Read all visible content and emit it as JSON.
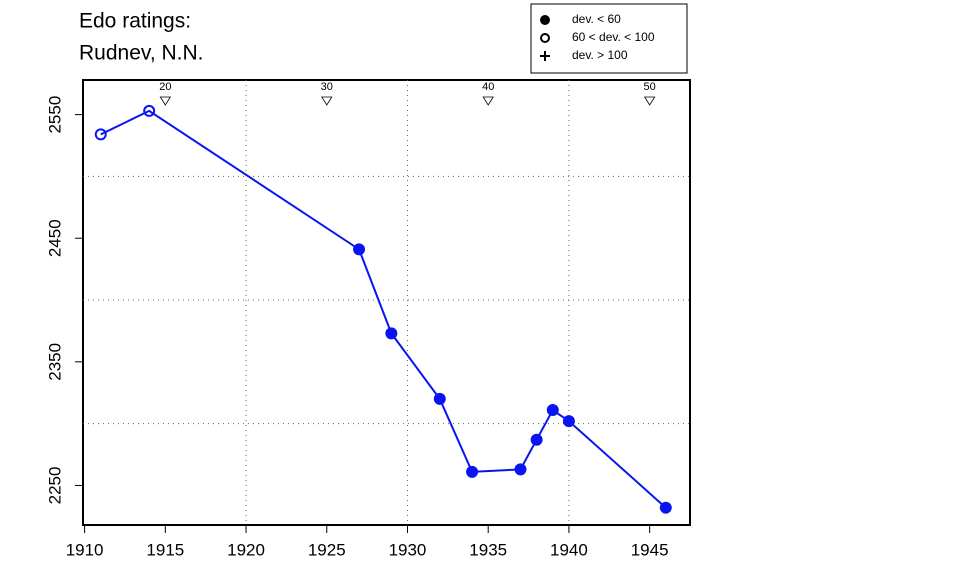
{
  "chart_data": {
    "type": "line",
    "title": "Edo ratings:",
    "subtitle": "Rudnev, N.N.",
    "color": "#0a14f0",
    "x": [
      1911,
      1914,
      1927,
      1929,
      1932,
      1934,
      1937,
      1938,
      1939,
      1940,
      1946
    ],
    "values": [
      2534,
      2553,
      2441,
      2373,
      2320,
      2261,
      2263,
      2287,
      2311,
      2302,
      2232
    ],
    "markers": [
      "open",
      "open",
      "filled",
      "filled",
      "filled",
      "filled",
      "filled",
      "filled",
      "filled",
      "filled",
      "filled"
    ],
    "xlim": [
      1909.9,
      1947.5
    ],
    "ylim": [
      2218,
      2578
    ],
    "xticks": [
      1910,
      1915,
      1920,
      1925,
      1930,
      1935,
      1940,
      1945
    ],
    "yticks": [
      2250,
      2350,
      2450,
      2550
    ],
    "xgrid": [
      1920,
      1930,
      1940
    ],
    "ygrid": [
      2300,
      2400,
      2500
    ],
    "age_markers": [
      {
        "x": 1915,
        "age": 20
      },
      {
        "x": 1925,
        "age": 30
      },
      {
        "x": 1935,
        "age": 40
      },
      {
        "x": 1945,
        "age": 50
      }
    ],
    "legend": [
      {
        "label": "dev. < 60",
        "marker": "filled"
      },
      {
        "label": "60 < dev. < 100",
        "marker": "open"
      },
      {
        "label": "dev. > 100",
        "marker": "plus"
      }
    ]
  }
}
